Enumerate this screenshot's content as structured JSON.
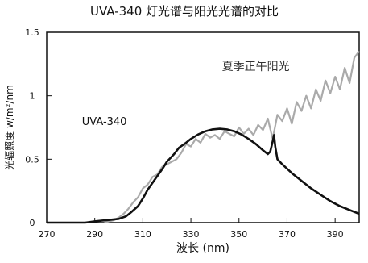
{
  "chart_data": {
    "type": "line",
    "title": "UVA-340 灯光谱与阳光光谱的对比",
    "xlabel": "波长 (nm)",
    "ylabel": "光辐照度 w/m²/nm",
    "xlim": [
      270,
      400
    ],
    "ylim": [
      0,
      1.5
    ],
    "x_ticks": [
      "270",
      "290",
      "310",
      "330",
      "350",
      "370",
      "390"
    ],
    "y_ticks": [
      "0",
      "0.5",
      "1",
      "1.5"
    ],
    "grid": false,
    "series": [
      {
        "name": "UVA-340",
        "color": "#111111",
        "x": [
          270,
          286,
          290,
          295,
          300,
          303,
          305,
          308,
          310,
          312,
          315,
          318,
          320,
          323,
          325,
          328,
          330,
          333,
          336,
          339,
          342,
          345,
          348,
          351,
          354,
          357,
          360,
          362,
          363,
          364,
          364.6,
          365.1,
          366,
          368,
          372,
          376,
          380,
          384,
          388,
          392,
          396,
          400
        ],
        "y": [
          0,
          0,
          0.01,
          0.02,
          0.03,
          0.05,
          0.08,
          0.13,
          0.19,
          0.26,
          0.34,
          0.42,
          0.48,
          0.54,
          0.59,
          0.63,
          0.66,
          0.695,
          0.72,
          0.735,
          0.74,
          0.735,
          0.72,
          0.695,
          0.66,
          0.62,
          0.57,
          0.54,
          0.56,
          0.64,
          0.69,
          0.6,
          0.5,
          0.46,
          0.39,
          0.33,
          0.27,
          0.22,
          0.17,
          0.13,
          0.1,
          0.07
        ]
      },
      {
        "name": "夏季正午阳光",
        "color": "#aaaaaa",
        "x": [
          294,
          296,
          298,
          300,
          302,
          304,
          306,
          308,
          310,
          312,
          314,
          316,
          318,
          320,
          322,
          324,
          326,
          328,
          330,
          332,
          334,
          336,
          338,
          340,
          342,
          344,
          346,
          348,
          350,
          352,
          354,
          356,
          358,
          360,
          362,
          364,
          366,
          368,
          370,
          372,
          374,
          376,
          378,
          380,
          382,
          384,
          386,
          388,
          390,
          392,
          394,
          396,
          398,
          400
        ],
        "y": [
          0,
          0.01,
          0.02,
          0.04,
          0.07,
          0.11,
          0.16,
          0.2,
          0.27,
          0.3,
          0.36,
          0.38,
          0.44,
          0.46,
          0.48,
          0.5,
          0.55,
          0.62,
          0.6,
          0.66,
          0.63,
          0.7,
          0.67,
          0.69,
          0.66,
          0.72,
          0.7,
          0.68,
          0.75,
          0.7,
          0.74,
          0.69,
          0.77,
          0.73,
          0.82,
          0.66,
          0.85,
          0.8,
          0.9,
          0.78,
          0.95,
          0.88,
          1.0,
          0.9,
          1.05,
          0.96,
          1.12,
          1.02,
          1.15,
          1.05,
          1.22,
          1.1,
          1.3,
          1.35
        ]
      }
    ],
    "annotations": [
      {
        "text": "夏季正午阳光",
        "x": 357,
        "y": 1.2
      },
      {
        "text": "UVA-340",
        "x": 294,
        "y": 0.77
      }
    ]
  }
}
